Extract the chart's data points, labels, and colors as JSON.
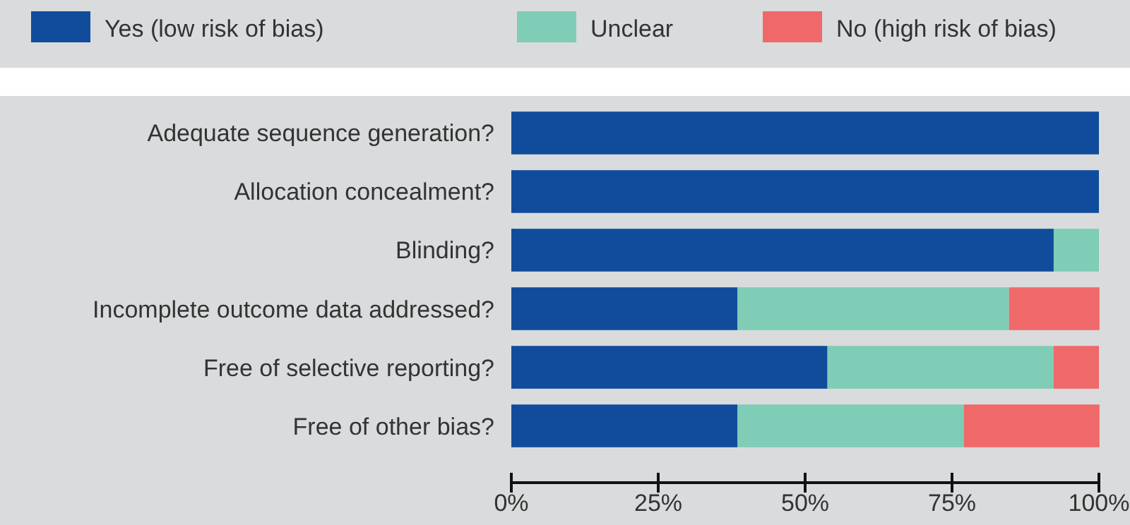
{
  "chart_data": {
    "type": "bar",
    "orientation": "horizontal",
    "stacked": true,
    "legend": "top",
    "grid": false,
    "categories": [
      "Adequate sequence generation?",
      "Allocation concealment?",
      "Blinding?",
      "Incomplete outcome data addressed?",
      "Free of selective reporting?",
      "Free of other bias?"
    ],
    "series": [
      {
        "name": "Yes (low risk of bias)",
        "color": "#114c9c",
        "values": [
          100,
          100,
          92.3,
          38.5,
          53.8,
          38.5
        ]
      },
      {
        "name": "Unclear",
        "color": "#7fcdb6",
        "values": [
          0,
          0,
          7.7,
          46.2,
          38.5,
          38.5
        ]
      },
      {
        "name": "No (high risk of bias)",
        "color": "#f0696a",
        "values": [
          0,
          0,
          0,
          15.4,
          7.7,
          23.1
        ]
      }
    ],
    "xlim": [
      0,
      100
    ],
    "xticks": [
      {
        "value": 0,
        "label": "0%"
      },
      {
        "value": 25,
        "label": "25%"
      },
      {
        "value": 50,
        "label": "50%"
      },
      {
        "value": 75,
        "label": "75%"
      },
      {
        "value": 100,
        "label": "100%"
      }
    ]
  }
}
